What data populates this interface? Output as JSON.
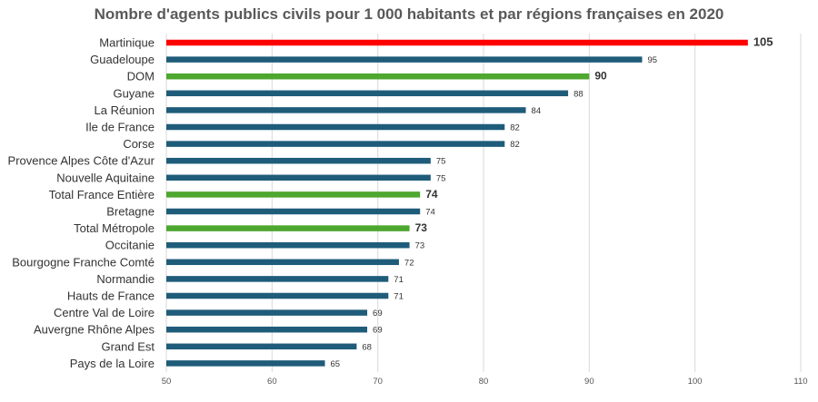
{
  "chart_data": {
    "type": "bar",
    "orientation": "horizontal",
    "title": "Nombre d'agents publics civils pour 1 000 habitants et par régions françaises en 2020",
    "xlabel": "",
    "ylabel": "",
    "xlim": [
      50,
      110
    ],
    "ticks": [
      50,
      60,
      70,
      80,
      90,
      100,
      110
    ],
    "grid": true,
    "legend": "none",
    "colors": {
      "default": "#1f5c7a",
      "red": "#ff0000",
      "green": "#4ea72e"
    },
    "categories": [
      "Martinique",
      "Guadeloupe",
      "DOM",
      "Guyane",
      "La Réunion",
      "Ile de France",
      "Corse",
      "Provence Alpes Côte d'Azur",
      "Nouvelle Aquitaine",
      "Total France Entière",
      "Bretagne",
      "Total Métropole",
      "Occitanie",
      "Bourgogne Franche Comté",
      "Normandie",
      "Hauts de France",
      "Centre Val de Loire",
      "Auvergne Rhône Alpes",
      "Grand Est",
      "Pays de la Loire"
    ],
    "values": [
      105,
      95,
      90,
      88,
      84,
      82,
      82,
      75,
      75,
      74,
      74,
      73,
      73,
      72,
      71,
      71,
      69,
      69,
      68,
      65
    ],
    "highlight": [
      "red",
      "",
      "green",
      "",
      "",
      "",
      "",
      "",
      "",
      "green",
      "",
      "green",
      "",
      "",
      "",
      "",
      "",
      "",
      "",
      ""
    ]
  }
}
